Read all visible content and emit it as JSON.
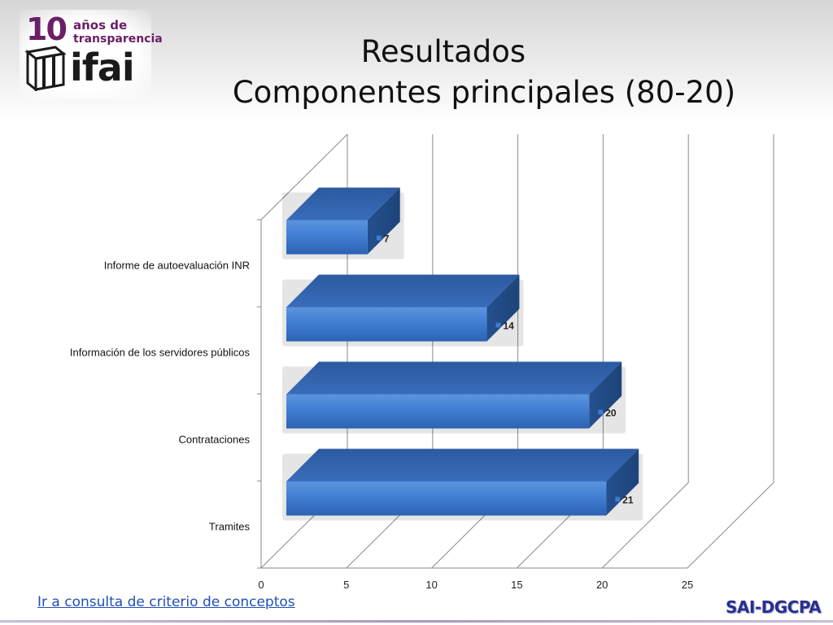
{
  "header": {
    "logo": {
      "number": "10",
      "line1": "años de",
      "line2": "transparencia",
      "brand": "ifai"
    },
    "title_line1": "Resultados",
    "title_line2": "Componentes principales (80-20)"
  },
  "chart_data": {
    "type": "bar",
    "orientation": "horizontal",
    "three_d": true,
    "categories": [
      "Informe de autoevaluación INR",
      "Información de los servidores públicos",
      "Contrataciones",
      "Tramites"
    ],
    "values": [
      7,
      14,
      20,
      21
    ],
    "data_labels": [
      "7",
      "14",
      "20",
      "21"
    ],
    "xlim": [
      0,
      25
    ],
    "x_ticks": [
      0,
      5,
      10,
      15,
      20,
      25
    ],
    "title": "",
    "xlabel": "",
    "ylabel": "",
    "grid": true,
    "legend": "none",
    "bar_color": "#3f7cd0"
  },
  "footer": {
    "link_text": "Ir a consulta de criterio de conceptos",
    "brand": "SAI-DGCPA"
  }
}
